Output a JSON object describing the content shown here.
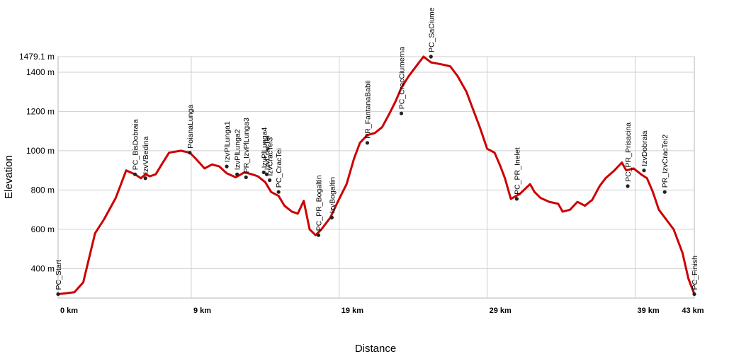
{
  "chart_data": {
    "type": "line",
    "title": "",
    "xlabel": "Distance",
    "ylabel": "Elevation",
    "xlim": [
      0,
      43
    ],
    "ylim": [
      250,
      1479.1
    ],
    "grid": true,
    "x_ticks": [
      {
        "value": 0,
        "label": "0 km"
      },
      {
        "value": 9,
        "label": "9 km"
      },
      {
        "value": 19,
        "label": "19 km"
      },
      {
        "value": 29,
        "label": "29 km"
      },
      {
        "value": 39,
        "label": "39 km"
      },
      {
        "value": 43,
        "label": "43 km"
      }
    ],
    "y_ticks": [
      {
        "value": 400,
        "label": "400 m"
      },
      {
        "value": 600,
        "label": "600 m"
      },
      {
        "value": 800,
        "label": "800 m"
      },
      {
        "value": 1000,
        "label": "1000 m"
      },
      {
        "value": 1200,
        "label": "1200 m"
      },
      {
        "value": 1400,
        "label": "1400 m"
      },
      {
        "value": 1479.1,
        "label": "1479.1 m"
      }
    ],
    "series": [
      {
        "color": "#cc0000",
        "x": [
          0,
          1.1,
          1.7,
          2.5,
          3.1,
          3.9,
          4.6,
          5.2,
          5.6,
          5.9,
          6.2,
          6.6,
          7.0,
          7.5,
          8.3,
          8.9,
          9.3,
          9.9,
          10.4,
          10.9,
          11.4,
          12.0,
          12.6,
          13.1,
          13.5,
          14.0,
          14.4,
          14.9,
          15.3,
          15.8,
          16.2,
          16.6,
          17.0,
          17.4,
          17.8,
          18.4,
          18.9,
          19.5,
          20.0,
          20.4,
          20.9,
          21.4,
          21.9,
          22.4,
          22.8,
          23.2,
          23.7,
          24.3,
          24.7,
          25.2,
          25.9,
          26.5,
          27.0,
          27.6,
          28.0,
          28.5,
          29.0,
          29.5,
          29.9,
          30.2,
          30.6,
          31.2,
          31.9,
          32.2,
          32.6,
          33.2,
          33.8,
          34.1,
          34.6,
          35.1,
          35.6,
          36.1,
          36.6,
          37.0,
          37.6,
          38.1,
          38.4,
          38.9,
          39.4,
          39.8,
          40.2,
          40.6,
          41.1,
          41.6,
          42.2,
          42.6,
          43.0
        ],
        "y": [
          270,
          280,
          330,
          580,
          650,
          760,
          900,
          880,
          860,
          880,
          870,
          880,
          930,
          990,
          1000,
          990,
          960,
          910,
          930,
          920,
          885,
          865,
          890,
          880,
          870,
          840,
          790,
          770,
          720,
          690,
          680,
          745,
          600,
          570,
          600,
          660,
          740,
          830,
          960,
          1040,
          1080,
          1090,
          1120,
          1190,
          1250,
          1320,
          1380,
          1440,
          1479.1,
          1450,
          1440,
          1430,
          1380,
          1300,
          1220,
          1120,
          1010,
          990,
          920,
          860,
          755,
          780,
          830,
          790,
          760,
          740,
          730,
          690,
          700,
          740,
          720,
          750,
          820,
          860,
          900,
          940,
          900,
          910,
          880,
          860,
          790,
          700,
          650,
          600,
          480,
          350,
          270
        ]
      }
    ],
    "waypoints": [
      {
        "name": "PC_Start",
        "x": 0,
        "y": 270
      },
      {
        "name": "PC_BisDobraia",
        "x": 5.2,
        "y": 880
      },
      {
        "name": "IzvVBedina",
        "x": 5.9,
        "y": 860
      },
      {
        "name": "PoianaLunga",
        "x": 8.9,
        "y": 990
      },
      {
        "name": "IzvPlLunga1",
        "x": 11.4,
        "y": 920
      },
      {
        "name": "IzvPlLunga2",
        "x": 12.1,
        "y": 880
      },
      {
        "name": "PR_IzvPlLunga3",
        "x": 12.7,
        "y": 865
      },
      {
        "name": "IzvPlLunga4",
        "x": 13.9,
        "y": 890
      },
      {
        "name": "IzvCracTei",
        "x": 14.1,
        "y": 880
      },
      {
        "name": "IzvCracTei3",
        "x": 14.3,
        "y": 850
      },
      {
        "name": "PC_CracTei",
        "x": 14.9,
        "y": 790
      },
      {
        "name": "PC_PR_Bogaltin",
        "x": 17.6,
        "y": 570
      },
      {
        "name": "IzvBogaltin",
        "x": 18.5,
        "y": 660
      },
      {
        "name": "PR_FantanaBabii",
        "x": 20.9,
        "y": 1040
      },
      {
        "name": "PC_CracCiumerna",
        "x": 23.2,
        "y": 1190
      },
      {
        "name": "PC_SaCiume",
        "x": 25.2,
        "y": 1479.1
      },
      {
        "name": "PC_PR_Inelet",
        "x": 31.0,
        "y": 755
      },
      {
        "name": "PC_PR_Prisacina",
        "x": 38.5,
        "y": 820
      },
      {
        "name": "IzvDobraia",
        "x": 39.6,
        "y": 900
      },
      {
        "name": "PR_IzvCracTei2",
        "x": 41.0,
        "y": 790
      },
      {
        "name": "PC_Finish",
        "x": 43.0,
        "y": 270
      }
    ]
  }
}
